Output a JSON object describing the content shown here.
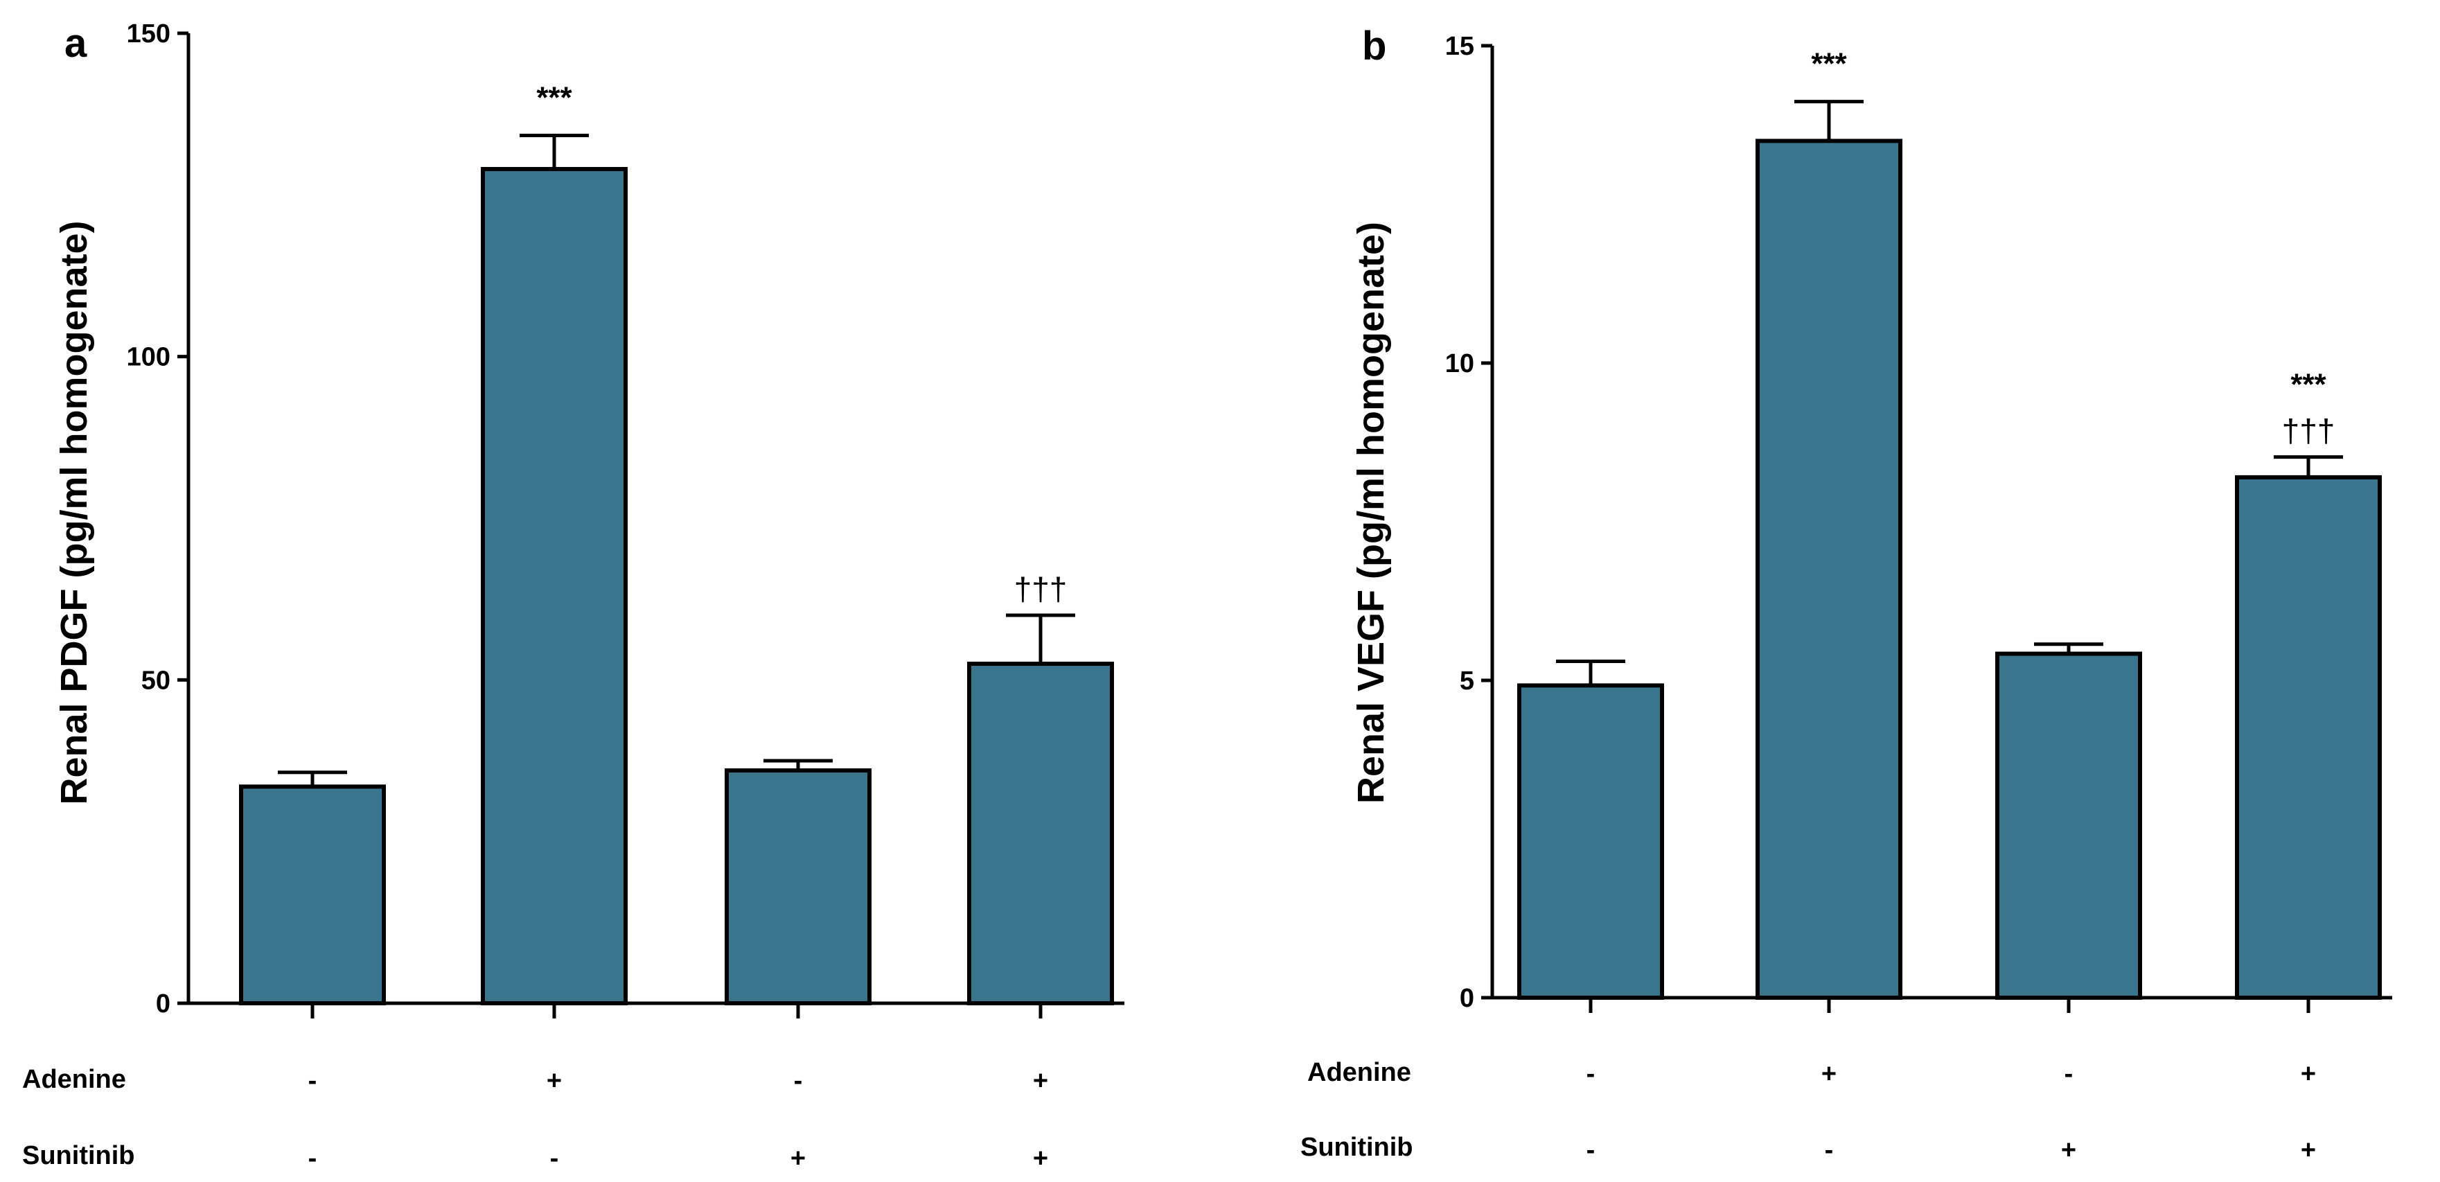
{
  "colors": {
    "bar_fill": "#3a758e",
    "bar_stroke": "#000000",
    "axis": "#000000"
  },
  "chart_data": [
    {
      "type": "bar",
      "panel_letter": "a",
      "ylabel": "Renal PDGF (pg/ml homogenate)",
      "xlabel": "",
      "ylim": [
        0,
        150
      ],
      "yticks": [
        0,
        50,
        100,
        150
      ],
      "ytick_labels": [
        "0",
        "50",
        "100",
        "150"
      ],
      "values": [
        33.5,
        129,
        36,
        52.5
      ],
      "errors": [
        2.2,
        5.2,
        1.5,
        7.5
      ],
      "annotations_top": [
        "",
        "***",
        "",
        ""
      ],
      "annotations_bottom": [
        "",
        "",
        "",
        "†††"
      ],
      "conditions": [
        {
          "label": "Adenine",
          "signs": [
            "-",
            "+",
            "-",
            "+"
          ]
        },
        {
          "label": "Sunitinib",
          "signs": [
            "-",
            "-",
            "+",
            "+"
          ]
        }
      ]
    },
    {
      "type": "bar",
      "panel_letter": "b",
      "ylabel": "Renal VEGF (pg/ml homogenate)",
      "xlabel": "",
      "ylim": [
        0,
        15
      ],
      "yticks": [
        0,
        5,
        10,
        15
      ],
      "ytick_labels": [
        "0",
        "5",
        "10",
        "15"
      ],
      "values": [
        4.92,
        13.5,
        5.42,
        8.2
      ],
      "errors": [
        0.38,
        0.62,
        0.15,
        0.32
      ],
      "annotations_top": [
        "",
        "***",
        "",
        "***"
      ],
      "annotations_bottom": [
        "",
        "",
        "",
        "†††"
      ],
      "conditions": [
        {
          "label": "Adenine",
          "signs": [
            "-",
            "+",
            "-",
            "+"
          ]
        },
        {
          "label": "Sunitinib",
          "signs": [
            "-",
            "-",
            "+",
            "+"
          ]
        }
      ]
    }
  ]
}
